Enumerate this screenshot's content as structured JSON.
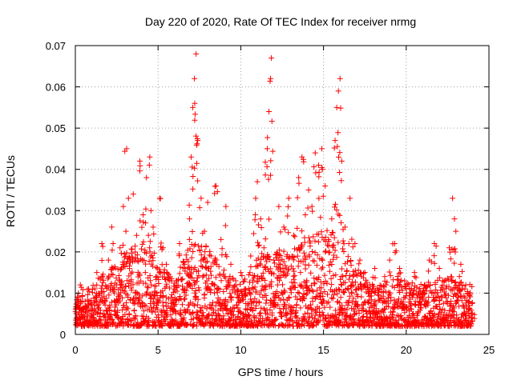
{
  "chart_data": {
    "type": "scatter",
    "title": "Day 220 of 2020, Rate Of TEC Index for receiver nrmg",
    "xlabel": "GPS time / hours",
    "ylabel": "ROTI / TECUs",
    "xlim": [
      0,
      25
    ],
    "ylim": [
      0,
      0.07
    ],
    "x_ticks": [
      0,
      5,
      10,
      15,
      20,
      25
    ],
    "y_ticks": [
      0,
      0.01,
      0.02,
      0.03,
      0.04,
      0.05,
      0.06,
      0.07
    ],
    "x_tick_labels": [
      "0",
      "5",
      "10",
      "15",
      "20",
      "25"
    ],
    "y_tick_labels": [
      "0",
      "0.01",
      "0.02",
      "0.03",
      "0.04",
      "0.05",
      "0.06",
      "0.07"
    ],
    "grid": true,
    "marker": "plus",
    "marker_color": "#ff0000",
    "series": [
      {
        "values": [
          [
            0.1,
            0.004
          ],
          [
            0.2,
            0.009
          ],
          [
            0.3,
            0.012
          ],
          [
            0.5,
            0.006
          ],
          [
            0.8,
            0.011
          ],
          [
            1.0,
            0.005
          ],
          [
            1.3,
            0.015
          ],
          [
            1.6,
            0.022
          ],
          [
            1.8,
            0.008
          ],
          [
            2.0,
            0.018
          ],
          [
            2.2,
            0.026
          ],
          [
            2.5,
            0.012
          ],
          [
            2.7,
            0.021
          ],
          [
            2.9,
            0.031
          ],
          [
            3.1,
            0.045
          ],
          [
            3.3,
            0.018
          ],
          [
            3.5,
            0.034
          ],
          [
            3.7,
            0.024
          ],
          [
            3.9,
            0.042
          ],
          [
            4.1,
            0.029
          ],
          [
            4.3,
            0.038
          ],
          [
            4.5,
            0.043
          ],
          [
            4.7,
            0.026
          ],
          [
            4.9,
            0.014
          ],
          [
            5.1,
            0.033
          ],
          [
            5.3,
            0.021
          ],
          [
            5.5,
            0.017
          ],
          [
            5.8,
            0.009
          ],
          [
            6.1,
            0.013
          ],
          [
            6.3,
            0.022
          ],
          [
            6.6,
            0.017
          ],
          [
            6.9,
            0.028
          ],
          [
            7.0,
            0.043
          ],
          [
            7.1,
            0.055
          ],
          [
            7.2,
            0.062
          ],
          [
            7.3,
            0.068
          ],
          [
            7.4,
            0.047
          ],
          [
            7.6,
            0.033
          ],
          [
            7.8,
            0.025
          ],
          [
            8.0,
            0.032
          ],
          [
            8.2,
            0.019
          ],
          [
            8.5,
            0.036
          ],
          [
            8.8,
            0.023
          ],
          [
            9.1,
            0.031
          ],
          [
            9.4,
            0.017
          ],
          [
            9.7,
            0.012
          ],
          [
            10.0,
            0.015
          ],
          [
            10.3,
            0.011
          ],
          [
            10.6,
            0.019
          ],
          [
            10.9,
            0.033
          ],
          [
            11.0,
            0.037
          ],
          [
            11.2,
            0.028
          ],
          [
            11.4,
            0.021
          ],
          [
            11.6,
            0.045
          ],
          [
            11.7,
            0.054
          ],
          [
            11.8,
            0.062
          ],
          [
            11.85,
            0.067
          ],
          [
            12.0,
            0.018
          ],
          [
            12.3,
            0.031
          ],
          [
            12.6,
            0.026
          ],
          [
            12.9,
            0.033
          ],
          [
            13.2,
            0.024
          ],
          [
            13.5,
            0.038
          ],
          [
            13.7,
            0.043
          ],
          [
            13.9,
            0.029
          ],
          [
            14.1,
            0.035
          ],
          [
            14.3,
            0.031
          ],
          [
            14.5,
            0.044
          ],
          [
            14.7,
            0.041
          ],
          [
            14.9,
            0.045
          ],
          [
            15.1,
            0.036
          ],
          [
            15.3,
            0.023
          ],
          [
            15.5,
            0.028
          ],
          [
            15.7,
            0.047
          ],
          [
            15.8,
            0.055
          ],
          [
            15.9,
            0.059
          ],
          [
            16.0,
            0.062
          ],
          [
            16.1,
            0.042
          ],
          [
            16.3,
            0.026
          ],
          [
            16.6,
            0.033
          ],
          [
            16.9,
            0.022
          ],
          [
            17.2,
            0.018
          ],
          [
            17.5,
            0.015
          ],
          [
            17.8,
            0.012
          ],
          [
            18.1,
            0.016
          ],
          [
            18.4,
            0.011
          ],
          [
            18.7,
            0.014
          ],
          [
            19.0,
            0.018
          ],
          [
            19.3,
            0.022
          ],
          [
            19.6,
            0.016
          ],
          [
            19.9,
            0.013
          ],
          [
            20.2,
            0.011
          ],
          [
            20.5,
            0.015
          ],
          [
            20.8,
            0.009
          ],
          [
            21.1,
            0.012
          ],
          [
            21.4,
            0.018
          ],
          [
            21.7,
            0.022
          ],
          [
            22.0,
            0.016
          ],
          [
            22.3,
            0.013
          ],
          [
            22.6,
            0.021
          ],
          [
            22.8,
            0.033
          ],
          [
            23.0,
            0.025
          ],
          [
            23.3,
            0.017
          ],
          [
            23.6,
            0.012
          ],
          [
            23.8,
            0.008
          ],
          [
            24.0,
            0.005
          ]
        ],
        "baseline_sampling": {
          "x_step_hours": 0.02,
          "envelope": [
            [
              0,
              0.01
            ],
            [
              1.0,
              0.012
            ],
            [
              2.0,
              0.016
            ],
            [
              3.0,
              0.02
            ],
            [
              4.0,
              0.024
            ],
            [
              5.0,
              0.018
            ],
            [
              6.0,
              0.014
            ],
            [
              7.0,
              0.022
            ],
            [
              8.0,
              0.022
            ],
            [
              9.0,
              0.016
            ],
            [
              10.0,
              0.012
            ],
            [
              11.0,
              0.02
            ],
            [
              12.0,
              0.02
            ],
            [
              13.0,
              0.02
            ],
            [
              14.0,
              0.024
            ],
            [
              15.0,
              0.026
            ],
            [
              16.0,
              0.024
            ],
            [
              17.0,
              0.016
            ],
            [
              18.0,
              0.012
            ],
            [
              19.0,
              0.014
            ],
            [
              20.0,
              0.013
            ],
            [
              21.0,
              0.012
            ],
            [
              22.0,
              0.014
            ],
            [
              23.0,
              0.014
            ],
            [
              24.0,
              0.012
            ]
          ],
          "floor": 0.002
        }
      }
    ]
  }
}
